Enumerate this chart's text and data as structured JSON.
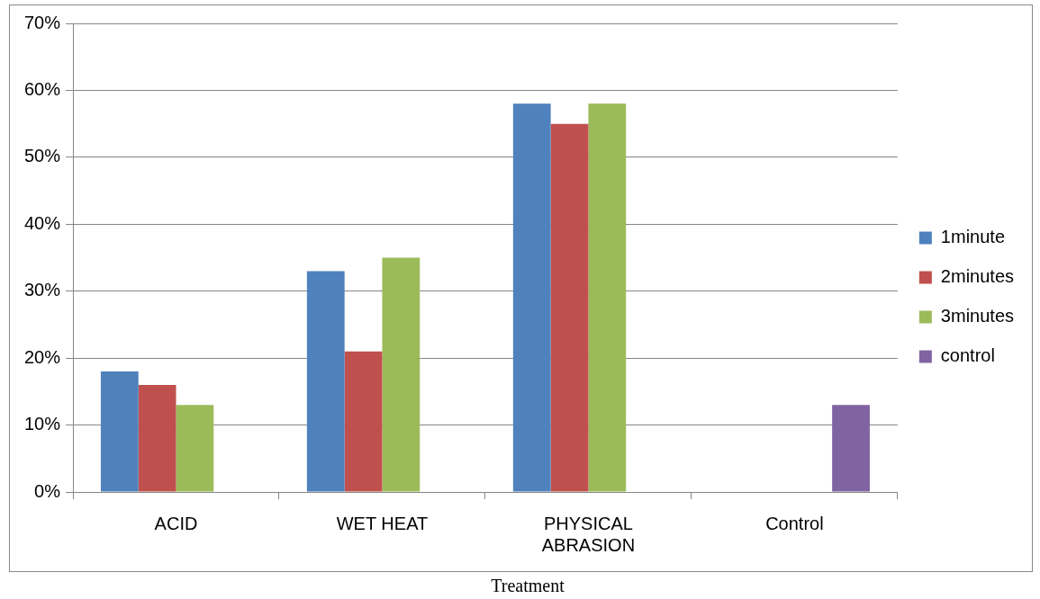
{
  "chart_data": {
    "type": "bar",
    "xlabel": "Treatment",
    "categories": [
      "ACID",
      "WET HEAT",
      "PHYSICAL\nABRASION",
      "Control"
    ],
    "series": [
      {
        "name": "1minute",
        "color": "#4f81bd",
        "values": [
          18,
          33,
          58,
          null
        ]
      },
      {
        "name": "2minutes",
        "color": "#c0504d",
        "values": [
          16,
          21,
          55,
          null
        ]
      },
      {
        "name": "3minutes",
        "color": "#9bbb59",
        "values": [
          13,
          35,
          58,
          null
        ]
      },
      {
        "name": "control",
        "color": "#8064a2",
        "values": [
          null,
          null,
          null,
          13
        ]
      }
    ],
    "ylim": [
      0,
      70
    ],
    "yticks": [
      {
        "value": 0,
        "label": "0%"
      },
      {
        "value": 10,
        "label": "10%"
      },
      {
        "value": 20,
        "label": "20%"
      },
      {
        "value": 30,
        "label": "30%"
      },
      {
        "value": 40,
        "label": "40%"
      },
      {
        "value": 50,
        "label": "50%"
      },
      {
        "value": 60,
        "label": "60%"
      },
      {
        "value": 70,
        "label": "70%"
      }
    ],
    "grid": "y",
    "legend": "right"
  }
}
